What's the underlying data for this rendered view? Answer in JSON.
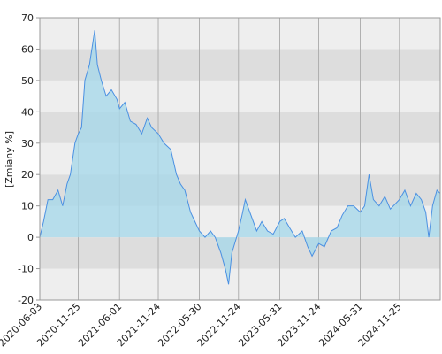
{
  "chart_data": {
    "type": "area",
    "y_label": "[Zmiany %]",
    "x": [
      "2020-06-03",
      "2020-06-20",
      "2020-07-10",
      "2020-08-01",
      "2020-08-25",
      "2020-09-15",
      "2020-10-05",
      "2020-10-20",
      "2020-11-10",
      "2020-11-25",
      "2020-12-10",
      "2020-12-25",
      "2021-01-15",
      "2021-02-08",
      "2021-02-20",
      "2021-03-10",
      "2021-04-01",
      "2021-04-25",
      "2021-05-20",
      "2021-06-01",
      "2021-06-25",
      "2021-07-20",
      "2021-08-15",
      "2021-09-10",
      "2021-10-05",
      "2021-10-25",
      "2021-11-24",
      "2021-12-20",
      "2022-01-20",
      "2022-02-15",
      "2022-03-05",
      "2022-03-25",
      "2022-04-20",
      "2022-05-10",
      "2022-05-30",
      "2022-06-25",
      "2022-07-20",
      "2022-08-10",
      "2022-09-05",
      "2022-09-25",
      "2022-10-10",
      "2022-10-25",
      "2022-11-24",
      "2022-12-10",
      "2022-12-25",
      "2023-01-20",
      "2023-02-15",
      "2023-03-10",
      "2023-04-05",
      "2023-05-01",
      "2023-05-31",
      "2023-06-20",
      "2023-07-15",
      "2023-08-10",
      "2023-09-10",
      "2023-10-05",
      "2023-10-25",
      "2023-11-24",
      "2023-12-20",
      "2024-01-20",
      "2024-02-15",
      "2024-03-10",
      "2024-04-05",
      "2024-05-01",
      "2024-05-31",
      "2024-06-20",
      "2024-07-10",
      "2024-07-30",
      "2024-08-25",
      "2024-09-20",
      "2024-10-15",
      "2024-11-25",
      "2024-12-20",
      "2025-01-15",
      "2025-02-10",
      "2025-03-05",
      "2025-03-25",
      "2025-04-08",
      "2025-04-25",
      "2025-05-15",
      "2025-05-30"
    ],
    "values": [
      0,
      5,
      12,
      12,
      15,
      10,
      17,
      20,
      30,
      33,
      35,
      50,
      55,
      66,
      55,
      50,
      45,
      47,
      44,
      41,
      43,
      37,
      36,
      33,
      38,
      35,
      33,
      30,
      28,
      20,
      17,
      15,
      8,
      5,
      2,
      0,
      2,
      0,
      -5,
      -10,
      -15,
      -5,
      2,
      7,
      12,
      7,
      2,
      5,
      2,
      1,
      5,
      6,
      3,
      0,
      2,
      -3,
      -6,
      -2,
      -3,
      2,
      3,
      7,
      10,
      10,
      8,
      10,
      20,
      12,
      10,
      13,
      9,
      12,
      15,
      10,
      14,
      12,
      8,
      0,
      10,
      15,
      14
    ],
    "line_color": "#4a90e2",
    "fill_color": "#a8d8ea",
    "xlim": [
      "2020-06-03",
      "2025-05-30"
    ],
    "xticks": [
      "2020-06-03",
      "2020-11-25",
      "2021-06-01",
      "2021-11-24",
      "2022-05-30",
      "2022-11-24",
      "2023-05-31",
      "2023-11-24",
      "2024-05-31",
      "2024-11-25"
    ],
    "ylim": [
      -20,
      70
    ],
    "yticks": [
      -20,
      -10,
      0,
      10,
      20,
      30,
      40,
      50,
      60,
      70
    ],
    "grid": true
  }
}
